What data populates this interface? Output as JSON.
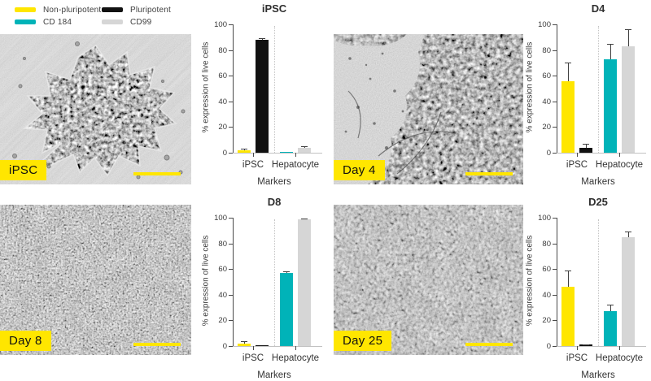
{
  "legend": {
    "position": "top-left",
    "items": [
      {
        "label": "Non-pluripotent",
        "color": "#ffe600"
      },
      {
        "label": "Pluripotent",
        "color": "#111111"
      },
      {
        "label": "CD 184",
        "color": "#00b3b8"
      },
      {
        "label": "CD99",
        "color": "#d6d6d6"
      }
    ]
  },
  "panels": [
    {
      "image_label": "iPSC",
      "chart_title": "iPSC"
    },
    {
      "image_label": "Day 4",
      "chart_title": "D4"
    },
    {
      "image_label": "Day 8",
      "chart_title": "D8"
    },
    {
      "image_label": "Day 25",
      "chart_title": "D25"
    }
  ],
  "chart_data": [
    {
      "type": "bar",
      "title": "iPSC",
      "xlabel": "Markers",
      "ylabel": "% expression of live cells",
      "ylim": [
        0,
        100
      ],
      "yticks": [
        0,
        20,
        40,
        60,
        80,
        100
      ],
      "grid": false,
      "categories": [
        "iPSC",
        "Hepatocyte"
      ],
      "series": [
        {
          "name": "Non-pluripotent",
          "group": "iPSC",
          "color": "#ffe600",
          "value": 2,
          "error": 1
        },
        {
          "name": "Pluripotent",
          "group": "iPSC",
          "color": "#111111",
          "value": 88,
          "error": 1.5
        },
        {
          "name": "CD 184",
          "group": "Hepatocyte",
          "color": "#00b3b8",
          "value": 0.3,
          "error": 0
        },
        {
          "name": "CD99",
          "group": "Hepatocyte",
          "color": "#d6d6d6",
          "value": 4,
          "error": 1
        }
      ]
    },
    {
      "type": "bar",
      "title": "D4",
      "xlabel": "Markers",
      "ylabel": "% expression of live cells",
      "ylim": [
        0,
        100
      ],
      "yticks": [
        0,
        20,
        40,
        60,
        80,
        100
      ],
      "grid": false,
      "categories": [
        "iPSC",
        "Hepatocyte"
      ],
      "series": [
        {
          "name": "Non-pluripotent",
          "group": "iPSC",
          "color": "#ffe600",
          "value": 56,
          "error": 14
        },
        {
          "name": "Pluripotent",
          "group": "iPSC",
          "color": "#111111",
          "value": 4,
          "error": 3
        },
        {
          "name": "CD 184",
          "group": "Hepatocyte",
          "color": "#00b3b8",
          "value": 73,
          "error": 12
        },
        {
          "name": "CD99",
          "group": "Hepatocyte",
          "color": "#d6d6d6",
          "value": 83,
          "error": 13
        }
      ]
    },
    {
      "type": "bar",
      "title": "D8",
      "xlabel": "Markers",
      "ylabel": "% expression of live cells",
      "ylim": [
        0,
        100
      ],
      "yticks": [
        0,
        20,
        40,
        60,
        80,
        100
      ],
      "grid": false,
      "categories": [
        "iPSC",
        "Hepatocyte"
      ],
      "series": [
        {
          "name": "Non-pluripotent",
          "group": "iPSC",
          "color": "#ffe600",
          "value": 2,
          "error": 1.5
        },
        {
          "name": "Pluripotent",
          "group": "iPSC",
          "color": "#111111",
          "value": 0.2,
          "error": 0
        },
        {
          "name": "CD 184",
          "group": "Hepatocyte",
          "color": "#00b3b8",
          "value": 57,
          "error": 1.5
        },
        {
          "name": "CD99",
          "group": "Hepatocyte",
          "color": "#d6d6d6",
          "value": 98.5,
          "error": 1
        }
      ]
    },
    {
      "type": "bar",
      "title": "D25",
      "xlabel": "Markers",
      "ylabel": "% expression of live cells",
      "ylim": [
        0,
        100
      ],
      "yticks": [
        0,
        20,
        40,
        60,
        80,
        100
      ],
      "grid": false,
      "categories": [
        "iPSC",
        "Hepatocyte"
      ],
      "series": [
        {
          "name": "Non-pluripotent",
          "group": "iPSC",
          "color": "#ffe600",
          "value": 46,
          "error": 13
        },
        {
          "name": "Pluripotent",
          "group": "iPSC",
          "color": "#111111",
          "value": 1,
          "error": 0.5
        },
        {
          "name": "CD 184",
          "group": "Hepatocyte",
          "color": "#00b3b8",
          "value": 27,
          "error": 5
        },
        {
          "name": "CD99",
          "group": "Hepatocyte",
          "color": "#d6d6d6",
          "value": 85,
          "error": 4
        }
      ]
    }
  ]
}
